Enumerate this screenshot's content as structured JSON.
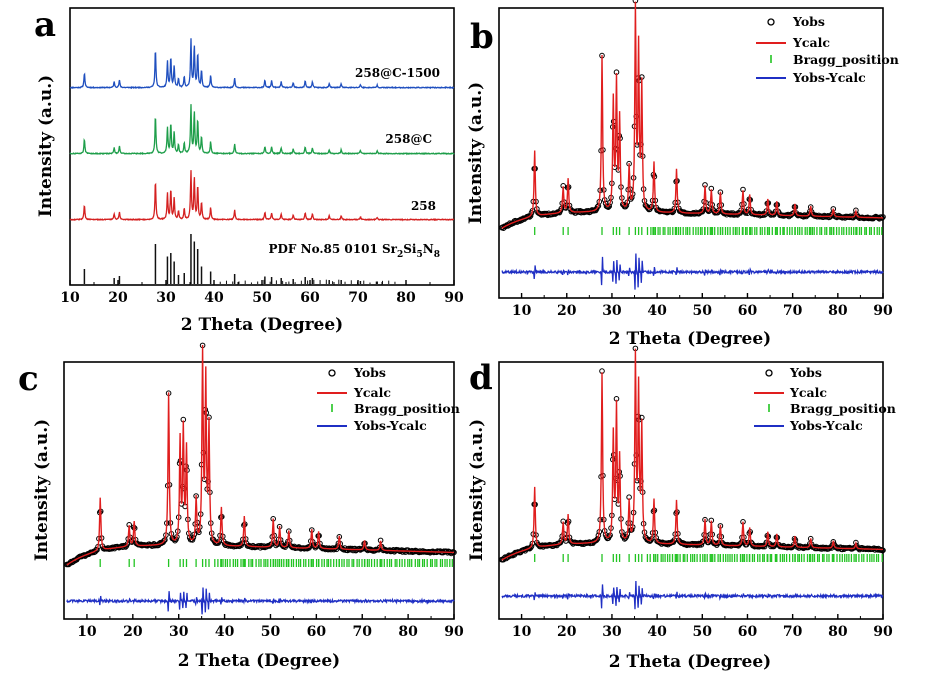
{
  "chart_data": [
    {
      "panel": "a",
      "type": "line",
      "xlabel": "2 Theta (Degree)",
      "ylabel": "Intensity (a.u.)",
      "xlim": [
        10,
        90
      ],
      "xticks": [
        10,
        20,
        30,
        40,
        50,
        60,
        70,
        80,
        90
      ],
      "series": [
        {
          "name": "258@C-1500",
          "color": "#1f4fbf"
        },
        {
          "name": "258@C",
          "color": "#1e9e4a"
        },
        {
          "name": "258",
          "color": "#d42020"
        },
        {
          "name": "PDF No.85 0101 Sr2Si5N8",
          "name_parts": [
            "PDF No.85 0101 Sr",
            "2",
            "Si",
            "5",
            "N",
            "8"
          ],
          "color": "#111111"
        }
      ],
      "peaks": [
        {
          "x": 13.0,
          "h": 0.3
        },
        {
          "x": 19.2,
          "h": 0.12
        },
        {
          "x": 20.3,
          "h": 0.16
        },
        {
          "x": 27.8,
          "h": 0.8
        },
        {
          "x": 30.3,
          "h": 0.55
        },
        {
          "x": 31.0,
          "h": 0.62
        },
        {
          "x": 31.7,
          "h": 0.45
        },
        {
          "x": 32.6,
          "h": 0.18
        },
        {
          "x": 33.8,
          "h": 0.22
        },
        {
          "x": 35.2,
          "h": 1.0
        },
        {
          "x": 35.9,
          "h": 0.85
        },
        {
          "x": 36.6,
          "h": 0.7
        },
        {
          "x": 37.4,
          "h": 0.35
        },
        {
          "x": 39.3,
          "h": 0.25
        },
        {
          "x": 44.3,
          "h": 0.2
        },
        {
          "x": 50.6,
          "h": 0.15
        },
        {
          "x": 52.0,
          "h": 0.14
        },
        {
          "x": 54.0,
          "h": 0.12
        },
        {
          "x": 56.5,
          "h": 0.1
        },
        {
          "x": 59.0,
          "h": 0.14
        },
        {
          "x": 60.5,
          "h": 0.12
        },
        {
          "x": 64.0,
          "h": 0.08
        },
        {
          "x": 66.5,
          "h": 0.08
        },
        {
          "x": 70.5,
          "h": 0.06
        },
        {
          "x": 74.0,
          "h": 0.05
        }
      ]
    },
    {
      "panel": "b",
      "type": "line",
      "xlabel": "2 Theta (Degree)",
      "ylabel": "Intensity (a.u.)",
      "xlim": [
        5,
        90
      ],
      "xticks": [
        10,
        20,
        30,
        40,
        50,
        60,
        70,
        80,
        90
      ],
      "legend": [
        "Yobs",
        "Ycalc",
        "Bragg_position",
        "Yobs-Ycalc"
      ],
      "legend_position": "top-right",
      "colors": {
        "Yobs": "#000000",
        "Ycalc": "#e01e1e",
        "Bragg_position": "#22c422",
        "Yobs-Ycalc": "#1f2fc4"
      },
      "peaks": [
        {
          "x": 12.9,
          "h": 0.33
        },
        {
          "x": 19.2,
          "h": 0.13
        },
        {
          "x": 20.3,
          "h": 0.17
        },
        {
          "x": 27.8,
          "h": 0.78
        },
        {
          "x": 30.3,
          "h": 0.55
        },
        {
          "x": 31.0,
          "h": 0.64
        },
        {
          "x": 31.7,
          "h": 0.46
        },
        {
          "x": 33.8,
          "h": 0.22
        },
        {
          "x": 35.2,
          "h": 1.0
        },
        {
          "x": 35.9,
          "h": 0.8
        },
        {
          "x": 36.6,
          "h": 0.62
        },
        {
          "x": 39.3,
          "h": 0.25
        },
        {
          "x": 44.3,
          "h": 0.22
        },
        {
          "x": 50.6,
          "h": 0.14
        },
        {
          "x": 52.0,
          "h": 0.12
        },
        {
          "x": 54.0,
          "h": 0.11
        },
        {
          "x": 59.0,
          "h": 0.12
        },
        {
          "x": 60.5,
          "h": 0.1
        },
        {
          "x": 64.5,
          "h": 0.08
        },
        {
          "x": 66.5,
          "h": 0.07
        },
        {
          "x": 70.5,
          "h": 0.06
        },
        {
          "x": 74.0,
          "h": 0.05
        },
        {
          "x": 79.0,
          "h": 0.04
        },
        {
          "x": 84.0,
          "h": 0.03
        }
      ]
    },
    {
      "panel": "c",
      "type": "line",
      "xlabel": "2 Theta (Degree)",
      "ylabel": "Intensity (a.u.)",
      "xlim": [
        5,
        90
      ],
      "xticks": [
        10,
        20,
        30,
        40,
        50,
        60,
        70,
        80,
        90
      ],
      "legend": [
        "Yobs",
        "Ycalc",
        "Bragg_position",
        "Yobs-Ycalc"
      ],
      "legend_position": "top-right",
      "colors": {
        "Yobs": "#000000",
        "Ycalc": "#e01e1e",
        "Bragg_position": "#22c422",
        "Yobs-Ycalc": "#1f2fc4"
      },
      "peaks": [
        {
          "x": 12.9,
          "h": 0.28
        },
        {
          "x": 19.2,
          "h": 0.11
        },
        {
          "x": 20.3,
          "h": 0.13
        },
        {
          "x": 27.8,
          "h": 0.8
        },
        {
          "x": 30.3,
          "h": 0.55
        },
        {
          "x": 31.0,
          "h": 0.6
        },
        {
          "x": 31.7,
          "h": 0.5
        },
        {
          "x": 33.8,
          "h": 0.24
        },
        {
          "x": 35.2,
          "h": 1.0
        },
        {
          "x": 35.9,
          "h": 0.86
        },
        {
          "x": 36.6,
          "h": 0.62
        },
        {
          "x": 39.3,
          "h": 0.2
        },
        {
          "x": 44.3,
          "h": 0.16
        },
        {
          "x": 50.6,
          "h": 0.15
        },
        {
          "x": 52.0,
          "h": 0.11
        },
        {
          "x": 54.0,
          "h": 0.09
        },
        {
          "x": 59.0,
          "h": 0.1
        },
        {
          "x": 60.5,
          "h": 0.09
        },
        {
          "x": 65.0,
          "h": 0.07
        },
        {
          "x": 70.5,
          "h": 0.05
        },
        {
          "x": 74.0,
          "h": 0.05
        }
      ]
    },
    {
      "panel": "d",
      "type": "line",
      "xlabel": "2 Theta (Degree)",
      "ylabel": "Intensity (a.u.)",
      "xlim": [
        5,
        90
      ],
      "xticks": [
        10,
        20,
        30,
        40,
        50,
        60,
        70,
        80,
        90
      ],
      "legend": [
        "Yobs",
        "Ycalc",
        "Bragg_position",
        "Yobs-Ycalc"
      ],
      "legend_position": "top-right",
      "colors": {
        "Yobs": "#000000",
        "Ycalc": "#e01e1e",
        "Bragg_position": "#22c422",
        "Yobs-Ycalc": "#1f2fc4"
      },
      "peaks": [
        {
          "x": 12.9,
          "h": 0.33
        },
        {
          "x": 19.2,
          "h": 0.12
        },
        {
          "x": 20.3,
          "h": 0.16
        },
        {
          "x": 27.8,
          "h": 0.92
        },
        {
          "x": 30.3,
          "h": 0.58
        },
        {
          "x": 31.0,
          "h": 0.72
        },
        {
          "x": 31.7,
          "h": 0.45
        },
        {
          "x": 33.8,
          "h": 0.22
        },
        {
          "x": 35.2,
          "h": 1.0
        },
        {
          "x": 35.9,
          "h": 0.82
        },
        {
          "x": 36.6,
          "h": 0.62
        },
        {
          "x": 39.3,
          "h": 0.24
        },
        {
          "x": 44.3,
          "h": 0.24
        },
        {
          "x": 50.6,
          "h": 0.14
        },
        {
          "x": 52.0,
          "h": 0.13
        },
        {
          "x": 54.0,
          "h": 0.11
        },
        {
          "x": 59.0,
          "h": 0.13
        },
        {
          "x": 60.5,
          "h": 0.1
        },
        {
          "x": 64.5,
          "h": 0.08
        },
        {
          "x": 66.5,
          "h": 0.07
        },
        {
          "x": 70.5,
          "h": 0.06
        },
        {
          "x": 74.0,
          "h": 0.05
        },
        {
          "x": 79.0,
          "h": 0.04
        },
        {
          "x": 84.0,
          "h": 0.03
        }
      ]
    }
  ]
}
